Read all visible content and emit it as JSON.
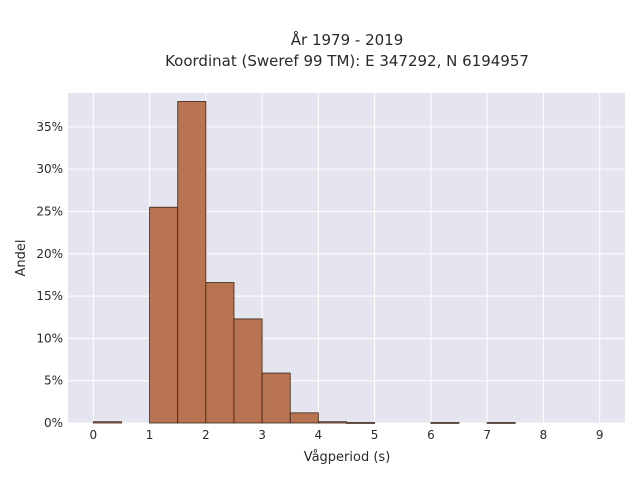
{
  "chart_data": {
    "type": "bar",
    "title_line1": "År 1979 - 2019",
    "title_line2": "Koordinat (Sweref 99 TM): E 347292, N 6194957",
    "xlabel": "Vågperiod (s)",
    "ylabel": "Andel",
    "xlim": [
      -0.45,
      9.45
    ],
    "ylim": [
      0,
      39
    ],
    "x_ticks": [
      {
        "value": 0,
        "label": "0"
      },
      {
        "value": 1,
        "label": "1"
      },
      {
        "value": 2,
        "label": "2"
      },
      {
        "value": 3,
        "label": "3"
      },
      {
        "value": 4,
        "label": "4"
      },
      {
        "value": 5,
        "label": "5"
      },
      {
        "value": 6,
        "label": "6"
      },
      {
        "value": 7,
        "label": "7"
      },
      {
        "value": 8,
        "label": "8"
      },
      {
        "value": 9,
        "label": "9"
      }
    ],
    "y_ticks": [
      {
        "value": 0,
        "label": "0%"
      },
      {
        "value": 5,
        "label": "5%"
      },
      {
        "value": 10,
        "label": "10%"
      },
      {
        "value": 15,
        "label": "15%"
      },
      {
        "value": 20,
        "label": "20%"
      },
      {
        "value": 25,
        "label": "25%"
      },
      {
        "value": 30,
        "label": "30%"
      },
      {
        "value": 35,
        "label": "35%"
      }
    ],
    "grid": true,
    "bar_color": "#b87350",
    "bar_edge_color": "#3a2418",
    "plot_bg_color": "#e5e5ef",
    "bins": [
      {
        "x0": 0.0,
        "x1": 0.5,
        "value": 0.15
      },
      {
        "x0": 1.0,
        "x1": 1.5,
        "value": 25.5
      },
      {
        "x0": 1.5,
        "x1": 2.0,
        "value": 38.0
      },
      {
        "x0": 2.0,
        "x1": 2.5,
        "value": 16.6
      },
      {
        "x0": 2.5,
        "x1": 3.0,
        "value": 12.3
      },
      {
        "x0": 3.0,
        "x1": 3.5,
        "value": 5.9
      },
      {
        "x0": 3.5,
        "x1": 4.0,
        "value": 1.2
      },
      {
        "x0": 4.0,
        "x1": 4.5,
        "value": 0.15
      },
      {
        "x0": 4.5,
        "x1": 5.0,
        "value": 0.05
      },
      {
        "x0": 6.0,
        "x1": 6.5,
        "value": 0.05
      },
      {
        "x0": 7.0,
        "x1": 7.5,
        "value": 0.05
      }
    ]
  }
}
